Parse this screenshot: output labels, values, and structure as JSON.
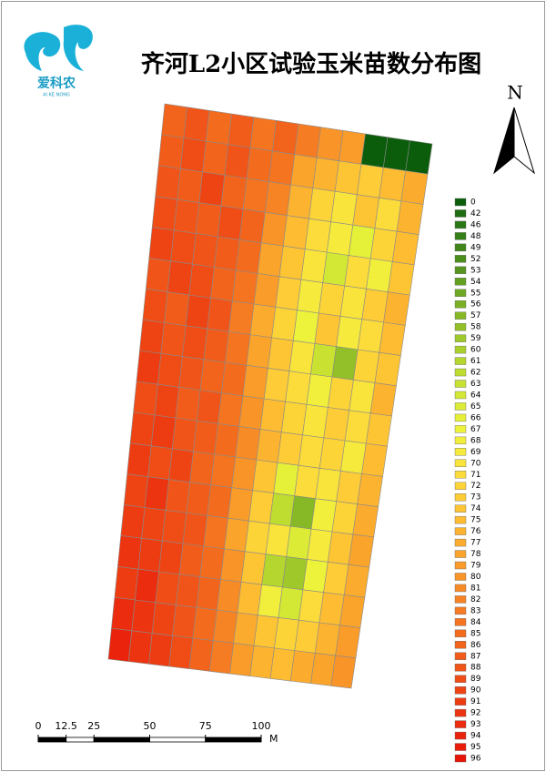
{
  "header": {
    "title": "齐河L2小区试验玉米苗数分布图",
    "logo_text": "爱科农",
    "logo_sub": "AI KE NONG"
  },
  "north": "N",
  "legend": {
    "values": [
      0,
      42,
      46,
      48,
      49,
      52,
      53,
      54,
      55,
      56,
      57,
      58,
      59,
      60,
      61,
      62,
      63,
      64,
      65,
      66,
      67,
      68,
      69,
      70,
      71,
      72,
      73,
      74,
      75,
      76,
      77,
      78,
      79,
      80,
      81,
      82,
      83,
      84,
      85,
      86,
      87,
      88,
      89,
      90,
      91,
      92,
      93,
      94,
      95,
      96
    ],
    "colors": [
      "#0b5d0b",
      "#1f6e12",
      "#2a7715",
      "#357f18",
      "#40861a",
      "#4c8e1c",
      "#58951e",
      "#64a020",
      "#6fa822",
      "#7bb024",
      "#87b826",
      "#93c028",
      "#9fc82a",
      "#abd02c",
      "#b5d62e",
      "#bfdc30",
      "#c9e232",
      "#d3e834",
      "#dcec36",
      "#e5f038",
      "#edf23a",
      "#f2ef3c",
      "#f6ea3c",
      "#f9e43c",
      "#fbdc3a",
      "#fcd438",
      "#fdcc36",
      "#fdc434",
      "#fdbc32",
      "#fcb430",
      "#fbac2e",
      "#faa42c",
      "#f99c2a",
      "#f89428",
      "#f78c26",
      "#f68424",
      "#f57c22",
      "#f47420",
      "#f36c1e",
      "#f2641c",
      "#f15c1a",
      "#f05418",
      "#ef4c16",
      "#ee4414",
      "#ed3c12",
      "#ec3410",
      "#eb2c0e",
      "#ea240c",
      "#e91c0a",
      "#e81408"
    ]
  },
  "scale": {
    "ticks": [
      0,
      12.5,
      25,
      50,
      75,
      100
    ],
    "unit": "M"
  },
  "map": {
    "grid": [
      [
        86,
        88,
        85,
        87,
        84,
        86,
        83,
        80,
        79,
        0,
        0,
        0
      ],
      [
        87,
        89,
        86,
        88,
        85,
        84,
        78,
        76,
        74,
        73,
        75,
        77
      ],
      [
        88,
        87,
        90,
        86,
        84,
        82,
        76,
        72,
        70,
        74,
        71,
        76
      ],
      [
        89,
        88,
        87,
        89,
        86,
        80,
        75,
        71,
        69,
        66,
        72,
        75
      ],
      [
        90,
        89,
        88,
        87,
        85,
        78,
        74,
        70,
        64,
        71,
        68,
        74
      ],
      [
        88,
        90,
        89,
        86,
        84,
        79,
        73,
        69,
        72,
        70,
        73,
        76
      ],
      [
        89,
        87,
        90,
        88,
        83,
        77,
        72,
        67,
        74,
        69,
        71,
        75
      ],
      [
        90,
        88,
        89,
        87,
        84,
        78,
        74,
        70,
        63,
        58,
        72,
        74
      ],
      [
        91,
        89,
        88,
        86,
        85,
        79,
        73,
        71,
        68,
        72,
        70,
        76
      ],
      [
        89,
        90,
        87,
        88,
        84,
        80,
        75,
        72,
        70,
        73,
        71,
        74
      ],
      [
        90,
        91,
        88,
        87,
        85,
        81,
        76,
        73,
        71,
        72,
        69,
        75
      ],
      [
        91,
        89,
        90,
        86,
        84,
        80,
        74,
        66,
        71,
        70,
        73,
        76
      ],
      [
        90,
        92,
        88,
        87,
        85,
        79,
        73,
        62,
        57,
        68,
        72,
        77
      ],
      [
        91,
        90,
        89,
        88,
        84,
        78,
        72,
        70,
        65,
        69,
        74,
        78
      ],
      [
        92,
        91,
        90,
        87,
        85,
        80,
        74,
        61,
        59,
        67,
        73,
        77
      ],
      [
        91,
        93,
        89,
        88,
        86,
        81,
        75,
        68,
        64,
        71,
        75,
        78
      ],
      [
        93,
        92,
        90,
        88,
        85,
        82,
        77,
        74,
        72,
        73,
        76,
        79
      ],
      [
        94,
        92,
        91,
        89,
        86,
        83,
        79,
        76,
        75,
        77,
        78,
        80
      ]
    ]
  }
}
